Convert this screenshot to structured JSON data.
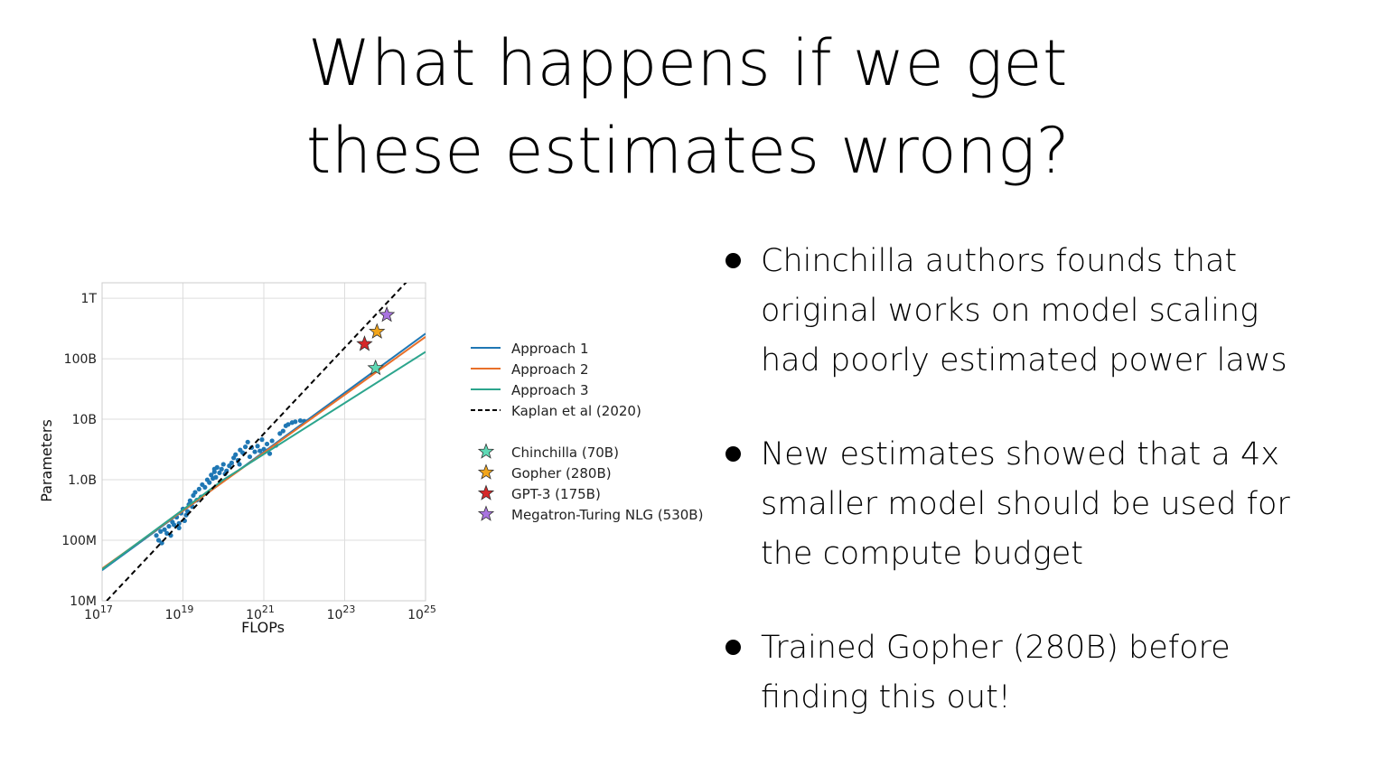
{
  "slide": {
    "title_lines": [
      "What happens if we get",
      "these estimates wrong?"
    ],
    "bullets": [
      {
        "lines": [
          "Chinchilla authors founds that",
          "original works on model scaling",
          "had poorly estimated power laws"
        ]
      },
      {
        "lines": [
          "New estimates showed that a 4x",
          "smaller model should be used for",
          "the compute budget"
        ]
      },
      {
        "lines": [
          "Trained Gopher (280B) before",
          "finding this out!"
        ]
      }
    ]
  },
  "chart_data": {
    "type": "scatter",
    "xlabel": "FLOPs",
    "ylabel": "Parameters",
    "x_scale": "log",
    "y_scale": "log",
    "xlim": [
      1e+17,
      1e+25
    ],
    "ylim": [
      10000000.0,
      1800000000000.0
    ],
    "grid": true,
    "x_ticks": [
      {
        "value": 1e+17,
        "base": "10",
        "exp": "17"
      },
      {
        "value": 1e+19,
        "base": "10",
        "exp": "19"
      },
      {
        "value": 1e+21,
        "base": "10",
        "exp": "21"
      },
      {
        "value": 1e+23,
        "base": "10",
        "exp": "23"
      },
      {
        "value": 1e+25,
        "base": "10",
        "exp": "25"
      }
    ],
    "y_ticks": [
      {
        "value": 10000000.0,
        "label": "10M"
      },
      {
        "value": 100000000.0,
        "label": "100M"
      },
      {
        "value": 1000000000.0,
        "label": "1.0B"
      },
      {
        "value": 10000000000.0,
        "label": "10B"
      },
      {
        "value": 100000000000.0,
        "label": "100B"
      },
      {
        "value": 1000000000000.0,
        "label": "1T"
      }
    ],
    "legend_placement": "right",
    "lines": [
      {
        "name": "Approach 1",
        "color": "#1f77b4",
        "style": "solid",
        "points": [
          [
            1e+17,
            32000000.0
          ],
          [
            1e+25,
            260000000000.0
          ]
        ]
      },
      {
        "name": "Approach 2",
        "color": "#e8702a",
        "style": "solid",
        "points": [
          [
            1e+17,
            34000000.0
          ],
          [
            1e+25,
            230000000000.0
          ]
        ]
      },
      {
        "name": "Approach 3",
        "color": "#2ca58d",
        "style": "solid",
        "points": [
          [
            1e+17,
            33000000.0
          ],
          [
            1e+20,
            1000000000.0
          ],
          [
            1e+25,
            130000000000.0
          ]
        ]
      },
      {
        "name": "Kaplan et al (2020)",
        "color": "#000000",
        "style": "dashed",
        "points": [
          [
            1.3e+17,
            10000000.0
          ],
          [
            3.5e+24,
            1900000000000.0
          ]
        ]
      }
    ],
    "models": [
      {
        "name": "Chinchilla (70B)",
        "flops": 5.8e+23,
        "params": 70000000000.0,
        "color": "#5fd9b5"
      },
      {
        "name": "Gopher (280B)",
        "flops": 6.3e+23,
        "params": 280000000000.0,
        "color": "#f2a51a"
      },
      {
        "name": "GPT-3 (175B)",
        "flops": 3.1e+23,
        "params": 175000000000.0,
        "color": "#d62728"
      },
      {
        "name": "Megatron-Turing NLG (530B)",
        "flops": 1.1e+24,
        "params": 530000000000.0,
        "color": "#a974e0"
      }
    ],
    "scatter_color": "#1f77b4",
    "scatter_points": [
      [
        2.2e+18,
        120000000.0
      ],
      [
        2.5e+18,
        100000000.0
      ],
      [
        2.8e+18,
        140000000.0
      ],
      [
        3e+18,
        90000000.0
      ],
      [
        3.5e+18,
        150000000.0
      ],
      [
        4e+18,
        130000000.0
      ],
      [
        4.5e+18,
        170000000.0
      ],
      [
        5e+18,
        120000000.0
      ],
      [
        5.5e+18,
        200000000.0
      ],
      [
        6e+18,
        180000000.0
      ],
      [
        7e+18,
        240000000.0
      ],
      [
        8e+18,
        190000000.0
      ],
      [
        9e+18,
        280000000.0
      ],
      [
        1e+19,
        330000000.0
      ],
      [
        1.1e+19,
        210000000.0
      ],
      [
        1.2e+19,
        260000000.0
      ],
      [
        1.4e+19,
        390000000.0
      ],
      [
        1.5e+19,
        450000000.0
      ],
      [
        1.7e+19,
        360000000.0
      ],
      [
        1.8e+19,
        550000000.0
      ],
      [
        2e+19,
        620000000.0
      ],
      [
        2.2e+19,
        460000000.0
      ],
      [
        2.5e+19,
        700000000.0
      ],
      [
        2.8e+19,
        520000000.0
      ],
      [
        3e+19,
        830000000.0
      ],
      [
        3.5e+19,
        750000000.0
      ],
      [
        4e+19,
        1000000000.0
      ],
      [
        4.5e+19,
        900000000.0
      ],
      [
        5e+19,
        1200000000.0
      ],
      [
        5.5e+19,
        1050000000.0
      ],
      [
        6e+19,
        1350000000.0
      ],
      [
        6.5e+19,
        1100000000.0
      ],
      [
        7e+19,
        1600000000.0
      ],
      [
        8e+19,
        1300000000.0
      ],
      [
        9e+19,
        1500000000.0
      ],
      [
        1e+20,
        1800000000.0
      ],
      [
        1.1e+20,
        1250000000.0
      ],
      [
        1.2e+20,
        1400000000.0
      ],
      [
        1.4e+20,
        1700000000.0
      ],
      [
        1.6e+20,
        1900000000.0
      ],
      [
        1.8e+20,
        2300000000.0
      ],
      [
        2e+20,
        2600000000.0
      ],
      [
        2.3e+20,
        2100000000.0
      ],
      [
        2.6e+20,
        3100000000.0
      ],
      [
        3e+20,
        2800000000.0
      ],
      [
        3.5e+20,
        3500000000.0
      ],
      [
        4e+20,
        4200000000.0
      ],
      [
        4.5e+20,
        2400000000.0
      ],
      [
        5e+20,
        3400000000.0
      ],
      [
        6e+20,
        2900000000.0
      ],
      [
        7e+20,
        3600000000.0
      ],
      [
        8e+20,
        3000000000.0
      ],
      [
        9e+20,
        4600000000.0
      ],
      [
        1e+21,
        3200000000.0
      ],
      [
        1.2e+21,
        3900000000.0
      ],
      [
        1.4e+21,
        2700000000.0
      ],
      [
        1.6e+21,
        4400000000.0
      ],
      [
        2e+21,
        3700000000.0
      ],
      [
        2.5e+21,
        5800000000.0
      ],
      [
        3e+21,
        6400000000.0
      ],
      [
        3.5e+21,
        7800000000.0
      ],
      [
        4e+21,
        8200000000.0
      ],
      [
        5e+21,
        8800000000.0
      ],
      [
        6e+21,
        9100000000.0
      ],
      [
        8e+21,
        9500000000.0
      ],
      [
        1e+22,
        9300000000.0
      ],
      [
        6e+19,
        1500000000.0
      ],
      [
        8e+18,
        160000000.0
      ],
      [
        1.3e+19,
        300000000.0
      ],
      [
        2.5e+20,
        1800000000.0
      ]
    ]
  }
}
